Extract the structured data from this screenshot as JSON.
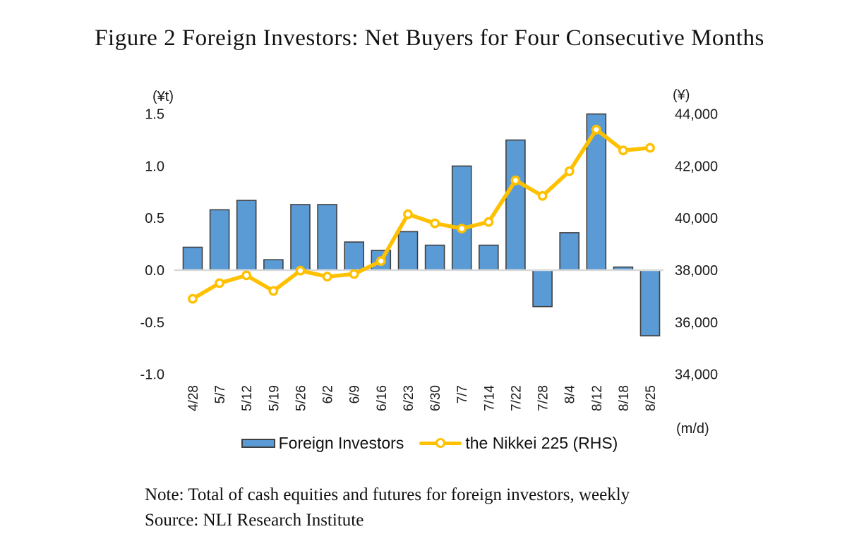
{
  "title": "Figure 2 Foreign Investors: Net Buyers for Four Consecutive Months",
  "note": "Note: Total of cash equities and futures for foreign investors, weekly",
  "source": "Source: NLI Research Institute",
  "colors": {
    "bar_fill": "#5B9BD5",
    "bar_border": "#404040",
    "line": "#FFC000",
    "marker_fill": "#FFFFFF",
    "baseline": "#D9D9D9",
    "text": "#1A1A1A"
  },
  "chart_data": {
    "type": "bar",
    "subtype": "combo-bar-line",
    "categories": [
      "4/28",
      "5/7",
      "5/12",
      "5/19",
      "5/26",
      "6/2",
      "6/9",
      "6/16",
      "6/23",
      "6/30",
      "7/7",
      "7/14",
      "7/22",
      "7/28",
      "8/4",
      "8/12",
      "8/18",
      "8/25"
    ],
    "series": [
      {
        "name": "Foreign Investors",
        "type": "bar",
        "axis": "left",
        "values": [
          0.22,
          0.58,
          0.67,
          0.1,
          0.63,
          0.63,
          0.27,
          0.19,
          0.37,
          0.24,
          1.0,
          0.24,
          1.25,
          -0.35,
          0.36,
          1.5,
          0.03,
          -0.63
        ]
      },
      {
        "name": "the Nikkei 225 (RHS)",
        "type": "line",
        "axis": "right",
        "values": [
          36900,
          37500,
          37800,
          37200,
          37980,
          37750,
          37850,
          38350,
          40150,
          39800,
          39600,
          39850,
          41450,
          40850,
          41800,
          43400,
          42600,
          42700
        ]
      }
    ],
    "left_axis": {
      "unit": "(¥t)",
      "ticks": [
        "1.5",
        "1.0",
        "0.5",
        "0.0",
        "-0.5",
        "-1.0"
      ],
      "tick_values": [
        1.5,
        1.0,
        0.5,
        0.0,
        -0.5,
        -1.0
      ],
      "range": [
        -1.0,
        1.5
      ]
    },
    "right_axis": {
      "unit": "(¥)",
      "ticks": [
        "44,000",
        "42,000",
        "40,000",
        "38,000",
        "36,000",
        "34,000"
      ],
      "tick_values": [
        44000,
        42000,
        40000,
        38000,
        36000,
        34000
      ],
      "range": [
        34000,
        44000
      ]
    },
    "x_axis": {
      "unit": "(m/d)"
    },
    "grid": false,
    "legend_position": "bottom"
  }
}
